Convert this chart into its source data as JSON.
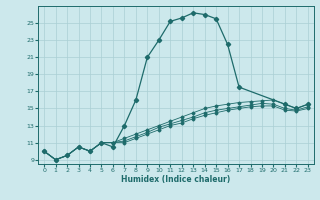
{
  "title": "",
  "xlabel": "Humidex (Indice chaleur)",
  "ylabel": "",
  "bg_color": "#cce8ec",
  "grid_color": "#aacfd5",
  "line_color": "#1e6b6b",
  "xlim": [
    -0.5,
    23.5
  ],
  "ylim": [
    8.5,
    27
  ],
  "yticks": [
    9,
    11,
    13,
    15,
    17,
    19,
    21,
    23,
    25
  ],
  "xticks": [
    0,
    1,
    2,
    3,
    4,
    5,
    6,
    7,
    8,
    9,
    10,
    11,
    12,
    13,
    14,
    15,
    16,
    17,
    18,
    19,
    20,
    21,
    22,
    23
  ],
  "series_main_x": [
    0,
    1,
    2,
    3,
    4,
    5,
    6,
    7,
    8,
    9,
    10,
    11,
    12,
    13,
    14,
    15,
    16,
    17,
    21,
    22,
    23
  ],
  "series_main_y": [
    10,
    9,
    9.5,
    10.5,
    10,
    11,
    10.5,
    13,
    16,
    21,
    23,
    25.2,
    25.6,
    26.2,
    26.0,
    25.5,
    22.5,
    17.5,
    15.5,
    15.0,
    15.5
  ],
  "series2_x": [
    0,
    1,
    2,
    3,
    4,
    5,
    6,
    7,
    8,
    9,
    10,
    11,
    12,
    13,
    14,
    15,
    16,
    17,
    18,
    19,
    20,
    21,
    22,
    23
  ],
  "series2_y": [
    10,
    9,
    9.5,
    10.5,
    10,
    11,
    11,
    11.5,
    12,
    12.5,
    13,
    13.5,
    14,
    14.5,
    15,
    15.3,
    15.5,
    15.7,
    15.8,
    15.9,
    16.0,
    15.5,
    15.0,
    15.5
  ],
  "series3_x": [
    0,
    1,
    2,
    3,
    4,
    5,
    6,
    7,
    8,
    9,
    10,
    11,
    12,
    13,
    14,
    15,
    16,
    17,
    18,
    19,
    20,
    21,
    22,
    23
  ],
  "series3_y": [
    10,
    9,
    9.5,
    10.5,
    10,
    11,
    11,
    11.2,
    11.7,
    12.2,
    12.8,
    13.2,
    13.6,
    14.0,
    14.5,
    14.8,
    15.0,
    15.2,
    15.4,
    15.6,
    15.5,
    15.0,
    14.8,
    15.2
  ],
  "series4_x": [
    0,
    1,
    2,
    3,
    4,
    5,
    6,
    7,
    8,
    9,
    10,
    11,
    12,
    13,
    14,
    15,
    16,
    17,
    18,
    19,
    20,
    21,
    22,
    23
  ],
  "series4_y": [
    10,
    9,
    9.5,
    10.5,
    10,
    11,
    11,
    11.0,
    11.5,
    12.0,
    12.5,
    13.0,
    13.3,
    13.8,
    14.2,
    14.5,
    14.8,
    15.0,
    15.2,
    15.3,
    15.3,
    14.8,
    14.7,
    15.0
  ]
}
